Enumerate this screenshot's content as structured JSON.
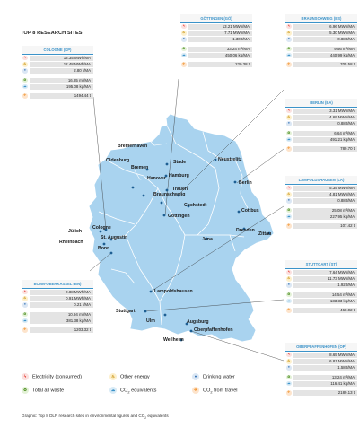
{
  "title": "TOP 8 RESEARCH SITES",
  "colors": {
    "map_fill": "#a9d3ef",
    "map_border": "#ffffff",
    "accent": "#3b93c9",
    "electricity": "#e4322b",
    "other_energy": "#f4b51c",
    "water": "#2f6fb3",
    "waste": "#74b543",
    "co2": "#3b93c9",
    "travel": "#f08a1c"
  },
  "legend": {
    "electricity": "Electricity (consumed)",
    "other_energy": "Other energy",
    "water": "Drinking water",
    "waste": "Total all waste",
    "co2_prefix": "CO",
    "co2_sub": "2",
    "co2_suffix": " equivalents",
    "travel_prefix": "CO",
    "travel_sub": "2",
    "travel_suffix": " from travel"
  },
  "caption": {
    "prefix": "Graphic: Top 8 DLR research sites in environmental figures and CO",
    "sub": "2",
    "suffix": " equivalents"
  },
  "cities": [
    {
      "name": "Bremerhaven"
    },
    {
      "name": "Stade"
    },
    {
      "name": "Hamburg"
    },
    {
      "name": "Oldenburg"
    },
    {
      "name": "Trauen"
    },
    {
      "name": "Bremen"
    },
    {
      "name": "Neustrelitz"
    },
    {
      "name": "Hanover"
    },
    {
      "name": "Berlin"
    },
    {
      "name": "Braunschweig"
    },
    {
      "name": "Cochstedt"
    },
    {
      "name": "Göttingen"
    },
    {
      "name": "Cottbus"
    },
    {
      "name": "Dresden"
    },
    {
      "name": "Zittau"
    },
    {
      "name": "Jena"
    },
    {
      "name": "Jülich"
    },
    {
      "name": "Cologne"
    },
    {
      "name": "St. Augustin"
    },
    {
      "name": "Rheinbach"
    },
    {
      "name": "Bonn"
    },
    {
      "name": "Lampoldshausen"
    },
    {
      "name": "Stuttgart"
    },
    {
      "name": "Ulm"
    },
    {
      "name": "Augsburg"
    },
    {
      "name": "Weilheim"
    },
    {
      "name": "Oberpfaffenhofen"
    }
  ],
  "sites": [
    {
      "name": "COLOGNE (KP)",
      "rows": {
        "electricity": "13.35 MWh/MA",
        "other_energy": "12.48 MWh/MA",
        "water": "2.80 t/MA",
        "waste": "16.85 m³/MA",
        "co2": "195.08 kg/MA",
        "travel": "1494.44 t"
      }
    },
    {
      "name": "GÖTTINGEN (GÖ)",
      "rows": {
        "electricity": "13.21 MWh/MA",
        "other_energy": "7.71 MWh/MA",
        "water": "1.30 t/MA",
        "waste": "33.24 m³/MA",
        "co2": "450.06 kg/MA",
        "travel": "220.38 t"
      }
    },
    {
      "name": "BRAUNSCHWEIG (BS)",
      "rows": {
        "electricity": "6.96 MWh/MA",
        "other_energy": "5.30 MWh/MA",
        "water": "0.88 t/MA",
        "waste": "9.56 m³/MA",
        "co2": "440.99 kg/MA",
        "travel": "705.58 t"
      }
    },
    {
      "name": "BERLIN (BA)",
      "rows": {
        "electricity": "3.31 MWh/MA",
        "other_energy": "4.69 MWh/MA",
        "water": "0.88 t/MA",
        "waste": "6.64 m³/MA",
        "co2": "491.21 kg/MA",
        "travel": "789.70 t"
      }
    },
    {
      "name": "LAMPOLDSHAUSEN (LA)",
      "rows": {
        "electricity": "5.35 MWh/MA",
        "other_energy": "4.81 MWh/MA",
        "water": "0.88 t/MA",
        "waste": "25.08 m³/MA",
        "co2": "227.95 kg/MA",
        "travel": "107.42 t"
      }
    },
    {
      "name": "BONN-OBERKASSEL (BN)",
      "rows": {
        "electricity": "0.88 MWh/MA",
        "other_energy": "0.91 MWh/MA",
        "water": "0.21 t/MA",
        "waste": "10.94 m³/MA",
        "co2": "381.38 kg/MA",
        "travel": "1203.32 t"
      }
    },
    {
      "name": "STUTTGART (ST)",
      "rows": {
        "electricity": "7.64 MWh/MA",
        "other_energy": "11.73 MWh/MA",
        "water": "1.92 t/MA",
        "waste": "14.54 m³/MA",
        "co2": "133.33 kg/MA",
        "travel": "468.02 t"
      }
    },
    {
      "name": "OBERPFAFFENHOFEN (OP)",
      "rows": {
        "electricity": "8.65 MWh/MA",
        "other_energy": "6.81 MWh/MA",
        "water": "1.58 t/MA",
        "waste": "13.24 m³/MA",
        "co2": "116.41 kg/MA",
        "travel": "2189.13 t"
      }
    }
  ]
}
